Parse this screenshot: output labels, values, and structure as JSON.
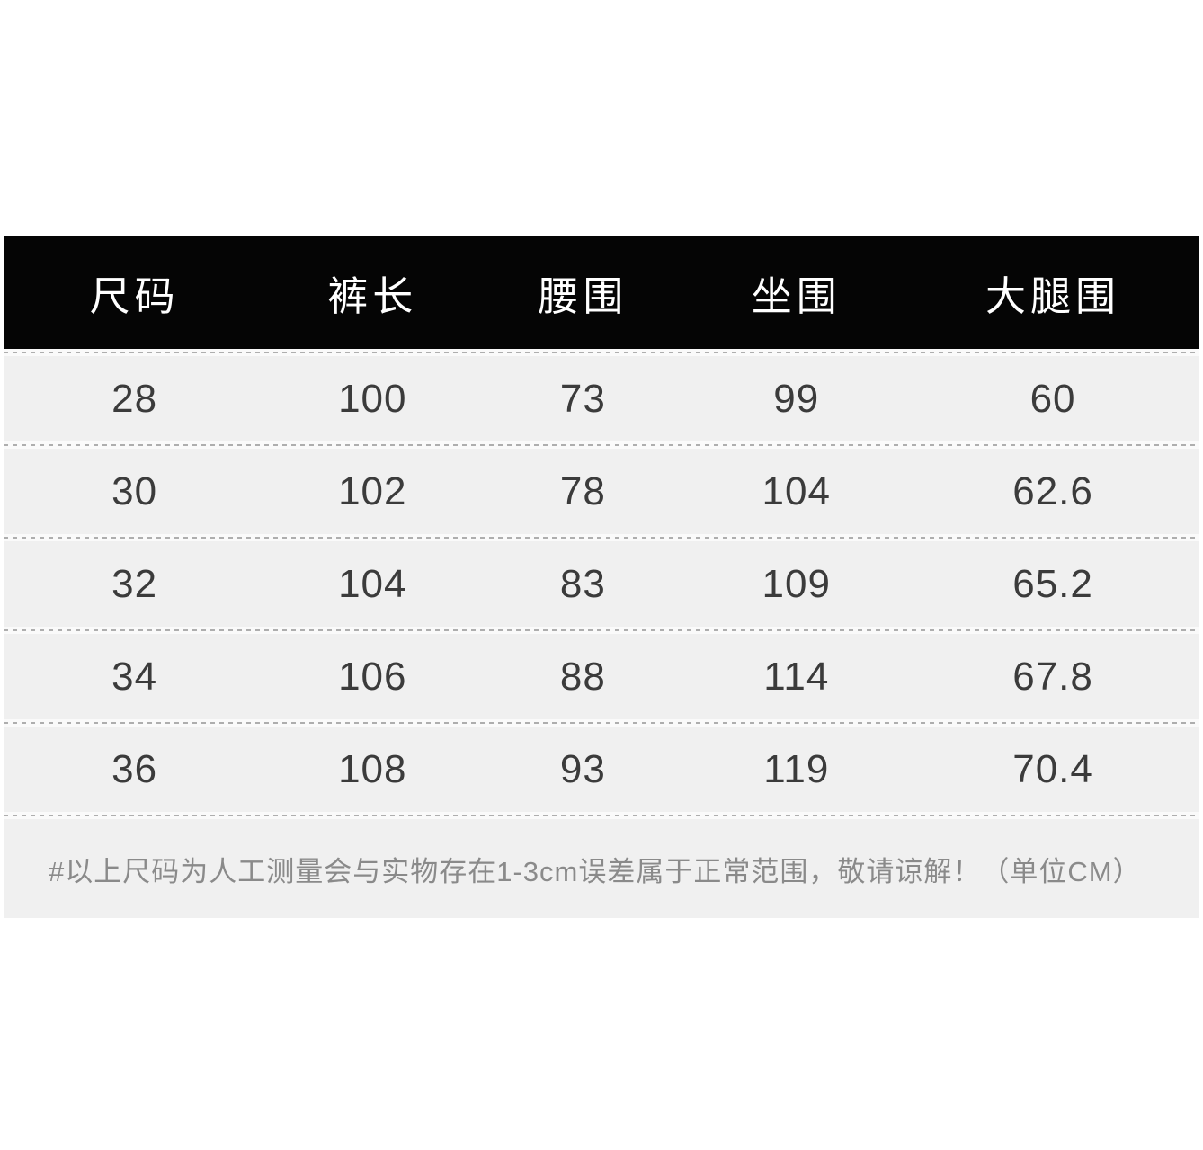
{
  "chart_data": {
    "type": "table",
    "columns": [
      "尺码",
      "裤长",
      "腰围",
      "坐围",
      "大腿围"
    ],
    "rows": [
      [
        "28",
        "100",
        "73",
        "99",
        "60"
      ],
      [
        "30",
        "102",
        "78",
        "104",
        "62.6"
      ],
      [
        "32",
        "104",
        "83",
        "109",
        "65.2"
      ],
      [
        "34",
        "106",
        "88",
        "114",
        "67.8"
      ],
      [
        "36",
        "108",
        "93",
        "119",
        "70.4"
      ]
    ],
    "note": "#以上尺码为人工测量会与实物存在1-3cm误差属于正常范围，敬请谅解！（单位CM）",
    "unit": "CM"
  },
  "table": {
    "columns": {
      "0": "尺码",
      "1": "裤长",
      "2": "腰围",
      "3": "坐围",
      "4": "大腿围"
    },
    "rows": {
      "0": {
        "cells": {
          "0": "28",
          "1": "100",
          "2": "73",
          "3": "99",
          "4": "60"
        }
      },
      "1": {
        "cells": {
          "0": "30",
          "1": "102",
          "2": "78",
          "3": "104",
          "4": "62.6"
        }
      },
      "2": {
        "cells": {
          "0": "32",
          "1": "104",
          "2": "83",
          "3": "109",
          "4": "65.2"
        }
      },
      "3": {
        "cells": {
          "0": "34",
          "1": "106",
          "2": "88",
          "3": "114",
          "4": "67.8"
        }
      },
      "4": {
        "cells": {
          "0": "36",
          "1": "108",
          "2": "93",
          "3": "119",
          "4": "70.4"
        }
      }
    },
    "note": "#以上尺码为人工测量会与实物存在1-3cm误差属于正常范围，敬请谅解！（单位CM）"
  },
  "colors": {
    "header_bg": "#050505",
    "header_text": "#ffffff",
    "row_bg": "#f0f0f0",
    "cell_text": "#3b3b3b",
    "note_text": "#8a8a8a",
    "separator": "#aeaeae",
    "page_bg": "#ffffff"
  }
}
